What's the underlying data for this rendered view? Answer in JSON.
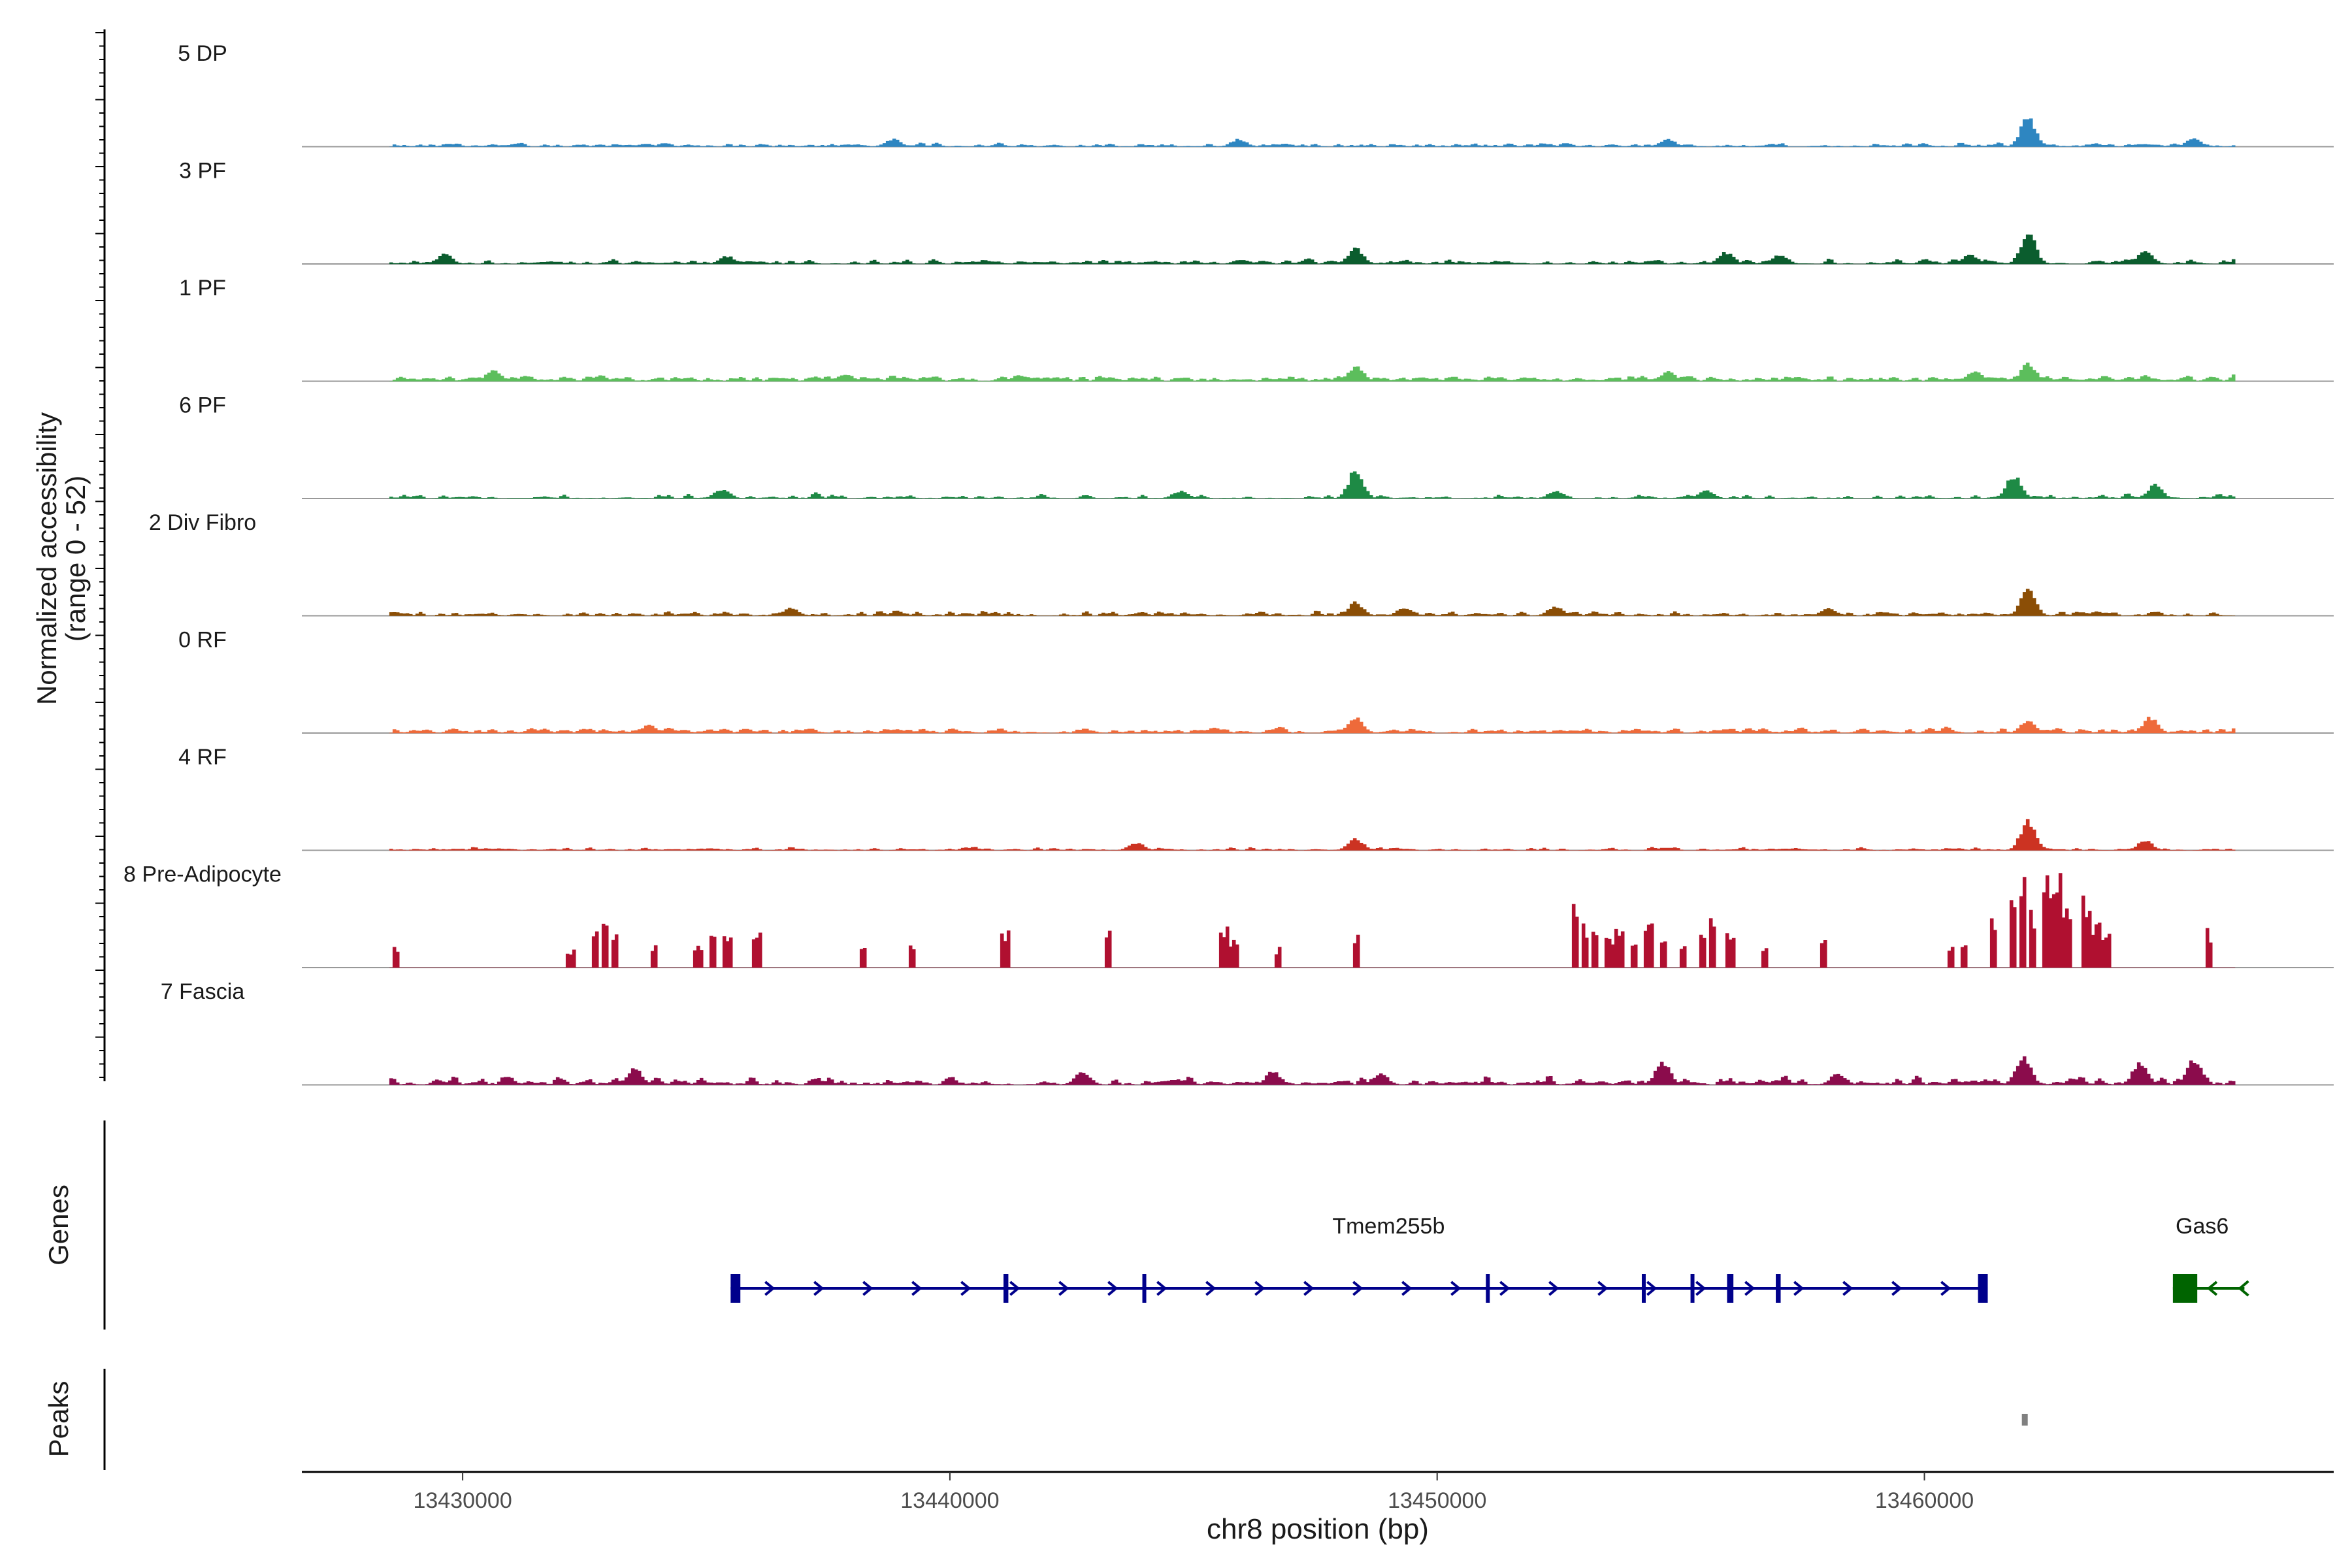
{
  "chart_data": {
    "type": "genome-track",
    "y_axis_title_line1": "Normalized accessibility",
    "y_axis_title_line2": "(range 0 - 52)",
    "y_range": [
      0,
      52
    ],
    "x_axis_title": "chr8 position (bp)",
    "x_range": [
      13426700,
      13468400
    ],
    "x_ticks": [
      13430000,
      13440000,
      13450000,
      13460000
    ],
    "x_tick_labels": [
      "13430000",
      "13440000",
      "13450000",
      "13460000"
    ],
    "data_start": 13428500,
    "data_end": 13466400,
    "tracks": [
      {
        "name": "5 DP",
        "color": "#2E86C1",
        "baseline": 2,
        "noise": 2,
        "density": 0.55,
        "peaks": [
          [
            13462100,
            16
          ],
          [
            13438800,
            4
          ],
          [
            13445900,
            4
          ],
          [
            13454700,
            4
          ],
          [
            13465500,
            4
          ]
        ]
      },
      {
        "name": "3 PF",
        "color": "#0B5D2E",
        "baseline": 2,
        "noise": 3,
        "density": 0.6,
        "peaks": [
          [
            13462100,
            16
          ],
          [
            13448300,
            8
          ],
          [
            13464500,
            7
          ],
          [
            13455900,
            6
          ],
          [
            13457000,
            5
          ],
          [
            13429600,
            5
          ],
          [
            13435400,
            4
          ],
          [
            13460900,
            5
          ]
        ]
      },
      {
        "name": "1 PF",
        "color": "#5CBE5C",
        "baseline": 3,
        "noise": 3,
        "density": 0.75,
        "peaks": [
          [
            13448300,
            8
          ],
          [
            13462100,
            9
          ],
          [
            13430600,
            6
          ],
          [
            13454700,
            5
          ],
          [
            13461000,
            5
          ]
        ]
      },
      {
        "name": "6 PF",
        "color": "#1E8A45",
        "baseline": 1,
        "noise": 3,
        "density": 0.5,
        "peaks": [
          [
            13448300,
            15
          ],
          [
            13461800,
            12
          ],
          [
            13464700,
            7
          ],
          [
            13444700,
            4
          ],
          [
            13435300,
            5
          ],
          [
            13452400,
            4
          ],
          [
            13455500,
            4
          ]
        ]
      },
      {
        "name": "2 Div Fibro",
        "color": "#8B4E06",
        "baseline": 2,
        "noise": 3,
        "density": 0.6,
        "peaks": [
          [
            13462100,
            14
          ],
          [
            13448300,
            7
          ],
          [
            13452400,
            5
          ],
          [
            13449300,
            4
          ],
          [
            13436700,
            4
          ],
          [
            13458000,
            4
          ]
        ]
      },
      {
        "name": "0 RF",
        "color": "#EE6A3A",
        "baseline": 3,
        "noise": 2,
        "density": 0.7,
        "peaks": [
          [
            13448300,
            8
          ],
          [
            13464600,
            8
          ],
          [
            13462100,
            7
          ],
          [
            13433800,
            4
          ]
        ]
      },
      {
        "name": "4 RF",
        "color": "#CC3322",
        "baseline": 1,
        "noise": 2,
        "density": 0.55,
        "peaks": [
          [
            13462100,
            16
          ],
          [
            13448300,
            6
          ],
          [
            13464500,
            5
          ],
          [
            13443800,
            4
          ]
        ]
      },
      {
        "name": "8 Pre-Adipocyte",
        "color": "#B01030",
        "baseline": 0,
        "noise": 0,
        "density": 0,
        "peaks": [
          [
            13428600,
            10
          ],
          [
            13432200,
            10
          ],
          [
            13432700,
            20
          ],
          [
            13432900,
            30
          ],
          [
            13433100,
            20
          ],
          [
            13433900,
            12
          ],
          [
            13434800,
            12
          ],
          [
            13435100,
            20
          ],
          [
            13435400,
            20
          ],
          [
            13436000,
            18
          ],
          [
            13438200,
            12
          ],
          [
            13439200,
            12
          ],
          [
            13441100,
            20
          ],
          [
            13443200,
            20
          ],
          [
            13445600,
            20
          ],
          [
            13445800,
            14
          ],
          [
            13446700,
            10
          ],
          [
            13448300,
            18
          ],
          [
            13452800,
            34
          ],
          [
            13453000,
            22
          ],
          [
            13453200,
            24
          ],
          [
            13453500,
            18
          ],
          [
            13453700,
            20
          ],
          [
            13454000,
            14
          ],
          [
            13454300,
            22
          ],
          [
            13454600,
            14
          ],
          [
            13455000,
            12
          ],
          [
            13455400,
            20
          ],
          [
            13455600,
            30
          ],
          [
            13456000,
            20
          ],
          [
            13456700,
            12
          ],
          [
            13457900,
            18
          ],
          [
            13460500,
            12
          ],
          [
            13460800,
            16
          ],
          [
            13461400,
            24
          ],
          [
            13461800,
            34
          ],
          [
            13462000,
            44
          ],
          [
            13462200,
            30
          ],
          [
            13462500,
            48
          ],
          [
            13462700,
            52
          ],
          [
            13462900,
            30
          ],
          [
            13463300,
            40
          ],
          [
            13463500,
            24
          ],
          [
            13463700,
            22
          ],
          [
            13465800,
            20
          ]
        ]
      },
      {
        "name": "7 Fascia",
        "color": "#8B0C4C",
        "baseline": 2,
        "noise": 5,
        "density": 0.7,
        "peaks": [
          [
            13433500,
            9
          ],
          [
            13454600,
            12
          ],
          [
            13462000,
            16
          ],
          [
            13464400,
            12
          ],
          [
            13465500,
            14
          ],
          [
            13442700,
            7
          ],
          [
            13446600,
            7
          ],
          [
            13448800,
            6
          ],
          [
            13458200,
            6
          ]
        ]
      }
    ],
    "genes": [
      {
        "name": "Tmem255b",
        "start": 13435500,
        "end": 13461300,
        "strand": "+",
        "color": "#00008B",
        "exons": [
          [
            13435500,
            13435700
          ],
          [
            13441100,
            13441200
          ],
          [
            13443950,
            13444000
          ],
          [
            13451000,
            13451060
          ],
          [
            13454200,
            13454260
          ],
          [
            13455200,
            13455260
          ],
          [
            13455950,
            13456080
          ],
          [
            13456950,
            13457050
          ],
          [
            13461100,
            13461300
          ]
        ]
      },
      {
        "name": "Gas6",
        "start": 13465100,
        "end": 13466300,
        "strand": "-",
        "color": "#006400",
        "exons": [
          [
            13465100,
            13465600
          ]
        ]
      }
    ],
    "peaks_track": [
      [
        13462000,
        13462100
      ]
    ],
    "genes_panel_title": "Genes",
    "peaks_panel_title": "Peaks"
  }
}
